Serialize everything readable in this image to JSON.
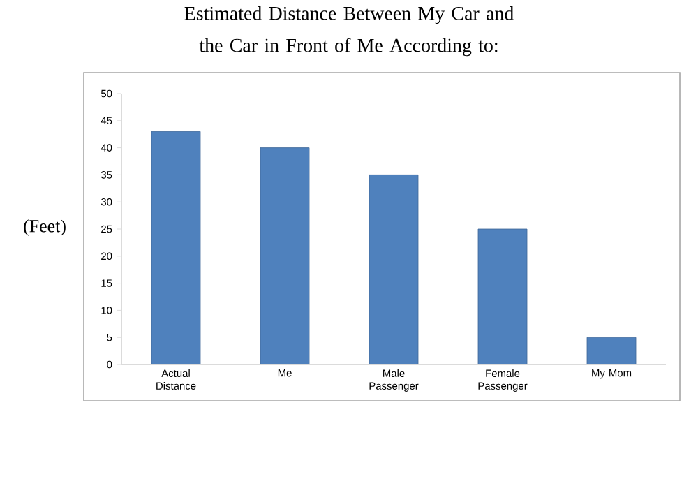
{
  "chart_data": {
    "type": "bar",
    "title": "Estimated Distance Between My Car and the Car in Front of Me According to:",
    "ylabel": "(Feet)",
    "categories": [
      "Actual Distance",
      "Me",
      "Male Passenger",
      "Female Passenger",
      "My Mom"
    ],
    "values": [
      43,
      40,
      35,
      25,
      5
    ],
    "color": "#4f81bd",
    "ylim": [
      0,
      50
    ],
    "yticks": [
      0,
      5,
      10,
      15,
      20,
      25,
      30,
      35,
      40,
      45,
      50
    ],
    "grid": false
  }
}
